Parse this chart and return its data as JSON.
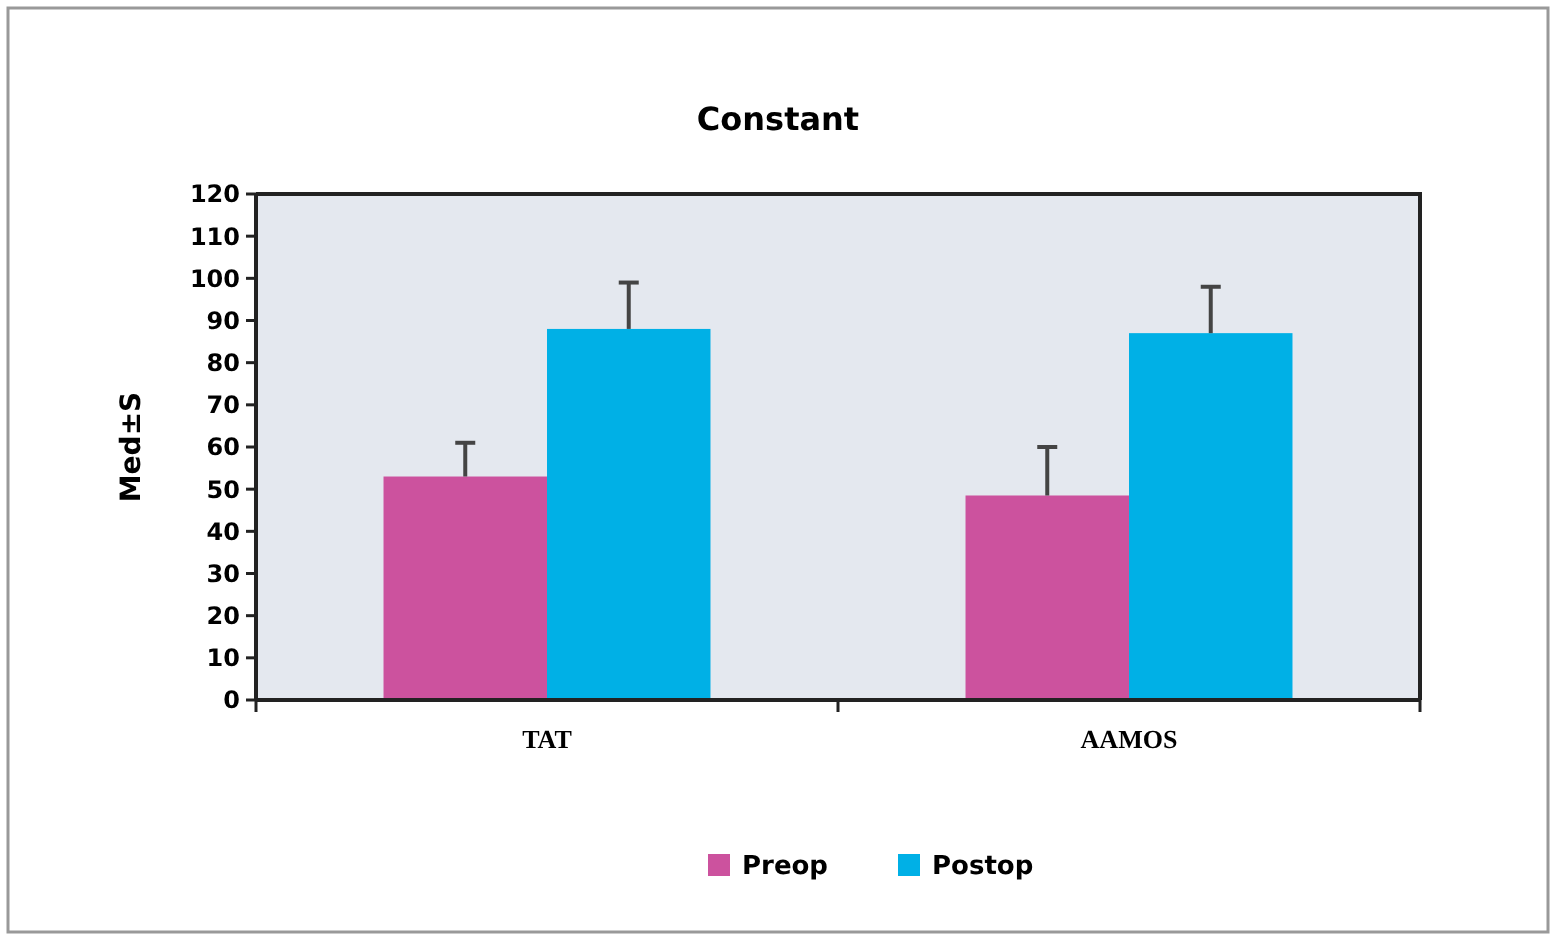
{
  "chart_data": {
    "type": "bar",
    "title": "Constant",
    "ylabel": "Med±S",
    "categories": [
      "TAT",
      "AAMOS"
    ],
    "series": [
      {
        "name": "Preop",
        "color": "#cc529e",
        "values": [
          53,
          48.5
        ],
        "errors": [
          [
            53,
            61
          ],
          [
            48.5,
            60
          ]
        ]
      },
      {
        "name": "Postop",
        "color": "#00b0e6",
        "values": [
          88,
          87
        ],
        "errors": [
          [
            88,
            99
          ],
          [
            87,
            98
          ]
        ]
      }
    ],
    "ylim": [
      0,
      120
    ],
    "yticks": [
      0,
      10,
      20,
      30,
      40,
      50,
      60,
      70,
      80,
      90,
      100,
      110,
      120
    ],
    "grid": false,
    "legend": "bottom"
  }
}
